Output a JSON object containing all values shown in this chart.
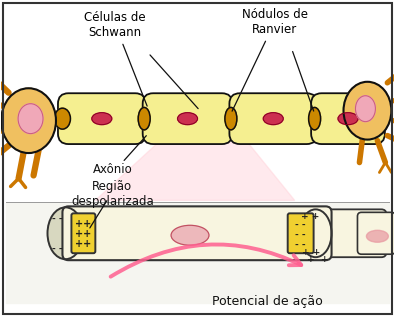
{
  "bg_color": "#ffffff",
  "border_color": "#333333",
  "label_celulas": "Células de\nSchwann",
  "label_nodulos": "Nódulos de\nRanvier",
  "label_axonio": "Axônio",
  "label_regiao": "Região\ndespolarizada",
  "label_potencial": "Potencial de ação",
  "myelin_color": "#f5ef90",
  "myelin_outline": "#111111",
  "node_color": "#cc8800",
  "axon_color": "#f8f5e0",
  "axon_outline": "#333333",
  "pink_region": "#ffd0d8",
  "arrow_color": "#ff6090",
  "nucleus_color": "#cc3050",
  "dendrite_color": "#cc7700",
  "soma_color": "#f0c060",
  "soma_outline": "#111111",
  "bottom_bg": "#f8f8f0",
  "node_yellow": "#f0d030",
  "axon_node_color": "#f0d030"
}
